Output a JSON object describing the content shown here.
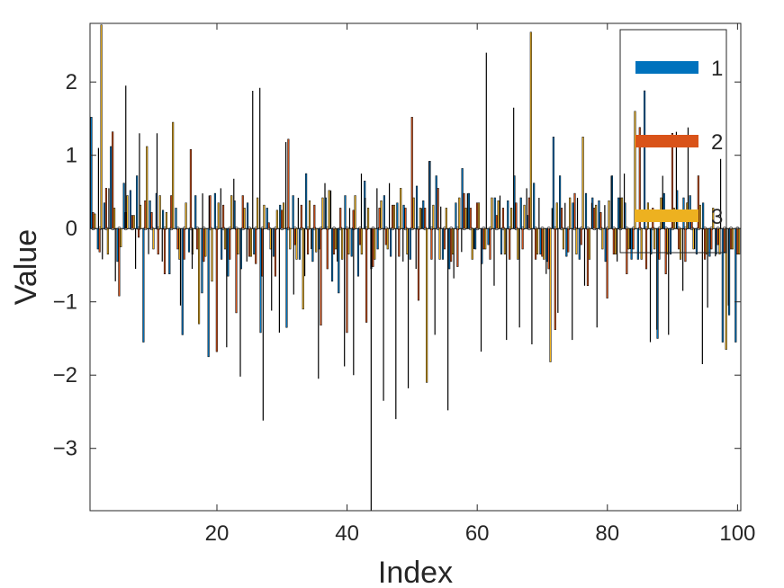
{
  "chart_data": {
    "type": "bar",
    "title": "",
    "xlabel": "Index",
    "ylabel": "Value",
    "xlim": [
      0.5,
      100.5
    ],
    "ylim": [
      -3.85,
      2.8
    ],
    "xticks": [
      20,
      40,
      60,
      80,
      100
    ],
    "yticks": [
      -3,
      -2,
      -1,
      0,
      1,
      2
    ],
    "grid": false,
    "legend_position": "top-right",
    "colors": [
      "#0072BD",
      "#D95319",
      "#EDB120"
    ],
    "categories": [
      1,
      2,
      3,
      4,
      5,
      6,
      7,
      8,
      9,
      10,
      11,
      12,
      13,
      14,
      15,
      16,
      17,
      18,
      19,
      20,
      21,
      22,
      23,
      24,
      25,
      26,
      27,
      28,
      29,
      30,
      31,
      32,
      33,
      34,
      35,
      36,
      37,
      38,
      39,
      40,
      41,
      42,
      43,
      44,
      45,
      46,
      47,
      48,
      49,
      50,
      51,
      52,
      53,
      54,
      55,
      56,
      57,
      58,
      59,
      60,
      61,
      62,
      63,
      64,
      65,
      66,
      67,
      68,
      69,
      70,
      71,
      72,
      73,
      74,
      75,
      76,
      77,
      78,
      79,
      80,
      81,
      82,
      83,
      84,
      85,
      86,
      87,
      88,
      89,
      90,
      91,
      92,
      93,
      94,
      95,
      96,
      97,
      98,
      99,
      100
    ],
    "series": [
      {
        "name": "1",
        "values": [
          1.52,
          -0.28,
          0.35,
          1.12,
          -0.45,
          0.62,
          0.52,
          0.72,
          -1.55,
          0.38,
          0.48,
          0.25,
          -0.62,
          0.28,
          -1.45,
          -0.32,
          0.45,
          -0.88,
          -1.75,
          0.48,
          -0.42,
          -0.65,
          0.38,
          -0.55,
          0.35,
          -0.35,
          -1.42,
          0.28,
          -0.38,
          0.32,
          -1.35,
          0.45,
          -0.42,
          0.75,
          -0.45,
          -0.28,
          0.42,
          -0.72,
          -0.88,
          0.45,
          -0.38,
          -0.65,
          0.65,
          -0.55,
          -0.28,
          0.45,
          -0.38,
          0.35,
          0.32,
          -0.42,
          0.58,
          0.38,
          0.92,
          0.72,
          -0.42,
          -0.55,
          0.35,
          0.82,
          0.48,
          -0.28,
          -0.48,
          -0.22,
          0.42,
          -0.35,
          0.38,
          0.72,
          0.42,
          0.18,
          0.62,
          -0.35,
          -0.45,
          1.25,
          0.72,
          -0.38,
          0.35,
          -0.42,
          0.48,
          0.42,
          0.38,
          -0.45,
          0.72,
          0.42,
          0.35,
          -0.42,
          -0.42,
          1.88,
          -0.35,
          -1.5,
          0.48,
          -0.35,
          0.52,
          0.42,
          0.45,
          -0.35,
          0.35,
          -0.38,
          -0.35,
          -1.55,
          -1.18,
          -1.55
        ]
      },
      {
        "name": "2",
        "values": [
          0.22,
          -0.32,
          0.55,
          1.32,
          -0.92,
          0.22,
          0.18,
          -0.12,
          0.38,
          0.22,
          -0.35,
          -0.62,
          0.45,
          -0.28,
          -0.42,
          1.08,
          -0.28,
          -0.45,
          0.45,
          -1.68,
          0.32,
          -0.42,
          -1.15,
          0.45,
          -0.38,
          -0.48,
          -0.65,
          0.08,
          -0.65,
          0.25,
          1.22,
          -0.22,
          0.32,
          -0.35,
          0.32,
          -1.32,
          -0.55,
          -0.35,
          0.28,
          -1.42,
          0.25,
          -0.22,
          -1.28,
          -0.52,
          0.28,
          -0.22,
          0.32,
          -0.38,
          0.28,
          1.52,
          -0.98,
          0.28,
          -0.42,
          0.55,
          -0.28,
          -0.45,
          -0.52,
          0.48,
          0.28,
          0.35,
          -0.28,
          -0.42,
          0.18,
          0.28,
          -0.42,
          0.35,
          -0.28,
          0.42,
          -0.42,
          -0.38,
          -0.55,
          -1.38,
          0.28,
          -0.32,
          0.48,
          -0.22,
          -0.78,
          0.28,
          0.22,
          -0.95,
          -0.35,
          0.42,
          -0.62,
          -0.28,
          1.38,
          -0.55,
          0.28,
          -0.42,
          -0.62,
          1.3,
          -0.28,
          -0.45,
          0.22,
          0.72,
          -0.42,
          -0.28,
          -0.22,
          -0.32,
          -0.28,
          -0.35
        ]
      },
      {
        "name": "3",
        "values": [
          0.2,
          2.78,
          -0.35,
          0.28,
          -0.25,
          0.45,
          0.18,
          0.32,
          1.12,
          -0.28,
          0.45,
          0.22,
          1.45,
          -0.42,
          0.35,
          -0.35,
          -1.3,
          -0.38,
          -0.72,
          0.35,
          -0.28,
          0.45,
          -0.35,
          0.28,
          -0.38,
          0.42,
          0.32,
          -0.28,
          0.25,
          0.35,
          -0.28,
          -0.42,
          -1.1,
          0.38,
          -0.32,
          0.42,
          0.52,
          -0.28,
          -0.42,
          -0.35,
          0.45,
          -0.35,
          0.28,
          -0.42,
          0.38,
          -0.28,
          0.32,
          0.55,
          -0.35,
          0.42,
          0.28,
          -2.1,
          0.32,
          -0.42,
          0.28,
          -0.35,
          0.42,
          0.28,
          -0.42,
          0.35,
          -0.28,
          0.42,
          0.38,
          -0.35,
          0.28,
          -0.42,
          0.32,
          2.68,
          -0.35,
          -0.42,
          -1.82,
          0.35,
          -0.28,
          0.42,
          -0.35,
          1.25,
          -0.42,
          0.32,
          -0.28,
          0.38,
          -0.35,
          0.42,
          -0.28,
          1.6,
          -0.42,
          0.35,
          -0.28,
          0.42,
          -0.35,
          0.28,
          -0.42,
          0.35,
          -0.28,
          0.32,
          -0.35,
          0.28,
          -0.35,
          -1.65,
          -0.28,
          -0.35
        ]
      }
    ],
    "stems": [
      {
        "x": 1.8,
        "y": 1.1
      },
      {
        "x": 2.4,
        "y": -0.42
      },
      {
        "x": 3.4,
        "y": 0.55
      },
      {
        "x": 4.4,
        "y": -0.72
      },
      {
        "x": 6.0,
        "y": 1.95
      },
      {
        "x": 7.5,
        "y": -0.55
      },
      {
        "x": 8.1,
        "y": 1.3
      },
      {
        "x": 9.5,
        "y": -0.35
      },
      {
        "x": 10.8,
        "y": 1.3
      },
      {
        "x": 11.6,
        "y": -0.45
      },
      {
        "x": 14.4,
        "y": -1.05
      },
      {
        "x": 16.2,
        "y": -0.55
      },
      {
        "x": 17.8,
        "y": 0.48
      },
      {
        "x": 18.8,
        "y": 0.45
      },
      {
        "x": 20.6,
        "y": 0.55
      },
      {
        "x": 21.5,
        "y": -1.62
      },
      {
        "x": 22.6,
        "y": 0.68
      },
      {
        "x": 23.6,
        "y": -2.02
      },
      {
        "x": 24.6,
        "y": -0.45
      },
      {
        "x": 25.5,
        "y": 1.88
      },
      {
        "x": 26.6,
        "y": 1.92
      },
      {
        "x": 27.1,
        "y": -2.62
      },
      {
        "x": 28.4,
        "y": -1.12
      },
      {
        "x": 29.6,
        "y": -1.42
      },
      {
        "x": 30.6,
        "y": 1.18
      },
      {
        "x": 31.8,
        "y": -0.9
      },
      {
        "x": 32.5,
        "y": 0.42
      },
      {
        "x": 33.5,
        "y": -0.65
      },
      {
        "x": 34.5,
        "y": -0.28
      },
      {
        "x": 35.6,
        "y": -2.05
      },
      {
        "x": 36.6,
        "y": 0.62
      },
      {
        "x": 37.5,
        "y": 0.52
      },
      {
        "x": 38.5,
        "y": -0.45
      },
      {
        "x": 39.6,
        "y": -1.88
      },
      {
        "x": 40.4,
        "y": 0.28
      },
      {
        "x": 41.0,
        "y": -2.0
      },
      {
        "x": 42.2,
        "y": 0.75
      },
      {
        "x": 42.8,
        "y": 0.42
      },
      {
        "x": 43.7,
        "y": -3.85
      },
      {
        "x": 44.6,
        "y": 0.55
      },
      {
        "x": 45.6,
        "y": -2.35
      },
      {
        "x": 46.5,
        "y": 0.62
      },
      {
        "x": 47.5,
        "y": -2.6
      },
      {
        "x": 48.6,
        "y": -0.45
      },
      {
        "x": 49.4,
        "y": -2.18
      },
      {
        "x": 50.6,
        "y": -0.55
      },
      {
        "x": 51.5,
        "y": 0.28
      },
      {
        "x": 52.6,
        "y": 0.92
      },
      {
        "x": 53.5,
        "y": -1.45
      },
      {
        "x": 54.4,
        "y": 0.3
      },
      {
        "x": 55.5,
        "y": -2.48
      },
      {
        "x": 56.4,
        "y": -0.68
      },
      {
        "x": 57.6,
        "y": -0.32
      },
      {
        "x": 58.5,
        "y": 0.48
      },
      {
        "x": 59.5,
        "y": -0.28
      },
      {
        "x": 60.6,
        "y": -1.68
      },
      {
        "x": 61.4,
        "y": 2.4
      },
      {
        "x": 62.6,
        "y": -0.78
      },
      {
        "x": 63.5,
        "y": 0.45
      },
      {
        "x": 64.5,
        "y": -1.52
      },
      {
        "x": 65.6,
        "y": 1.65
      },
      {
        "x": 66.5,
        "y": -1.35
      },
      {
        "x": 67.6,
        "y": 0.55
      },
      {
        "x": 68.4,
        "y": -1.58
      },
      {
        "x": 69.5,
        "y": 0.42
      },
      {
        "x": 70.6,
        "y": -0.62
      },
      {
        "x": 71.5,
        "y": 0.28
      },
      {
        "x": 72.4,
        "y": -1.15
      },
      {
        "x": 73.5,
        "y": 0.35
      },
      {
        "x": 74.6,
        "y": -1.52
      },
      {
        "x": 75.4,
        "y": 0.42
      },
      {
        "x": 76.5,
        "y": -0.78
      },
      {
        "x": 77.6,
        "y": 0.35
      },
      {
        "x": 78.4,
        "y": -1.35
      },
      {
        "x": 79.6,
        "y": 0.32
      },
      {
        "x": 80.6,
        "y": 0.72
      },
      {
        "x": 81.5,
        "y": -0.45
      },
      {
        "x": 82.6,
        "y": 0.75
      },
      {
        "x": 83.5,
        "y": -0.28
      },
      {
        "x": 86.6,
        "y": -1.55
      },
      {
        "x": 87.6,
        "y": -1.38
      },
      {
        "x": 88.5,
        "y": 0.72
      },
      {
        "x": 89.4,
        "y": -1.45
      },
      {
        "x": 90.6,
        "y": 1.32
      },
      {
        "x": 91.6,
        "y": -0.85
      },
      {
        "x": 92.4,
        "y": 1.38
      },
      {
        "x": 93.4,
        "y": -0.28
      },
      {
        "x": 94.6,
        "y": -1.85
      },
      {
        "x": 95.4,
        "y": -1.08
      },
      {
        "x": 96.6,
        "y": -0.38
      },
      {
        "x": 97.4,
        "y": 0.95
      },
      {
        "x": 98.6,
        "y": -1.05
      }
    ]
  }
}
